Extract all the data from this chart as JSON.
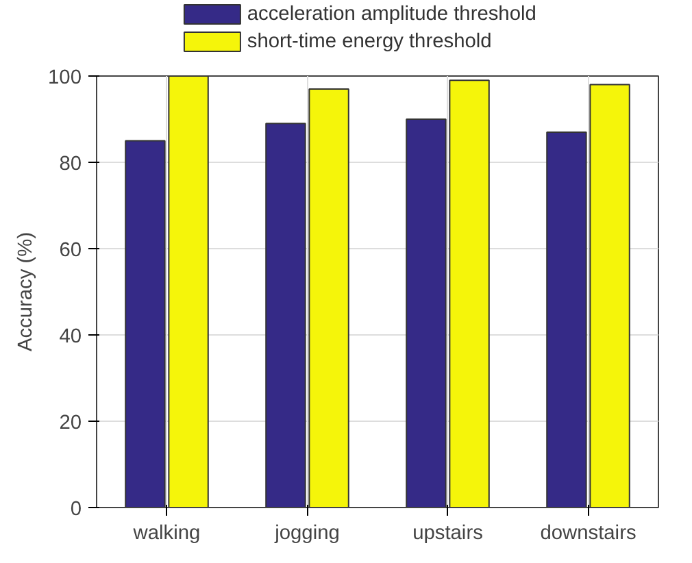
{
  "chart_data": {
    "type": "bar",
    "ylabel": "Accuracy (%)",
    "categories": [
      "walking",
      "jogging",
      "upstairs",
      "downstairs"
    ],
    "series": [
      {
        "name": "acceleration amplitude threshold",
        "color": "#352a87",
        "values": [
          85,
          89,
          90,
          87
        ]
      },
      {
        "name": "short-time energy threshold",
        "color": "#f5f50a",
        "values": [
          100,
          97,
          99,
          98
        ]
      }
    ],
    "ylim": [
      0,
      100
    ],
    "yticks": [
      0,
      20,
      40,
      60,
      80,
      100
    ],
    "grid": true,
    "legend": "top"
  }
}
